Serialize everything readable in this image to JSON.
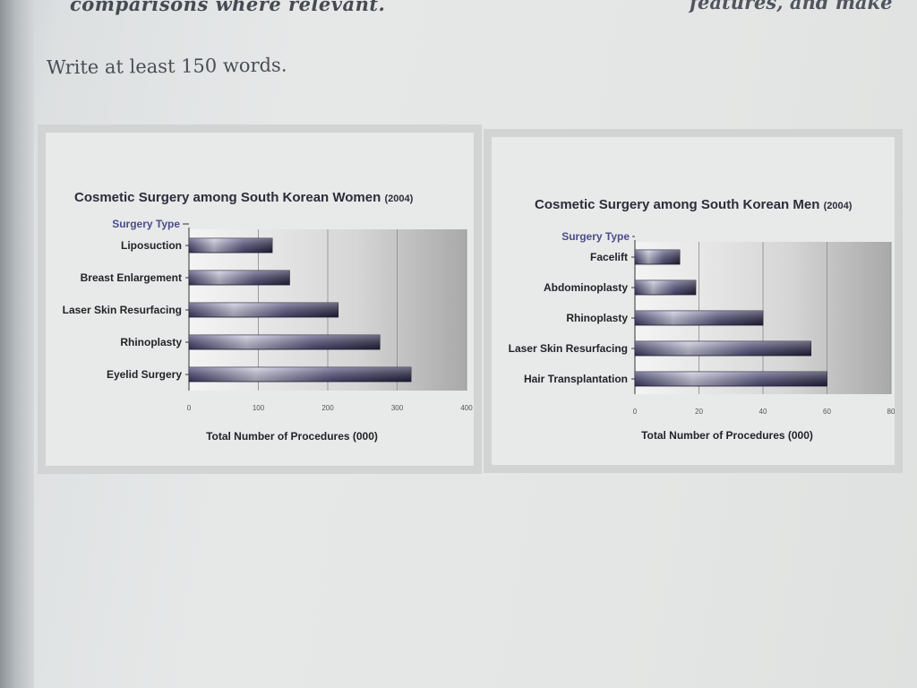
{
  "page": {
    "top_text_left": "comparisons where relevant.",
    "top_text_right": "features, and make",
    "instruction": "Write at least 150 words."
  },
  "chart_data": [
    {
      "type": "bar",
      "orientation": "horizontal",
      "title": "Cosmetic Surgery among South Korean Women",
      "title_suffix": "(2004)",
      "category_axis_title": "Surgery Type",
      "xlabel": "Total Number of Procedures (000)",
      "categories": [
        "Liposuction",
        "Breast Enlargement",
        "Laser Skin Resurfacing",
        "Rhinoplasty",
        "Eyelid Surgery"
      ],
      "values": [
        120,
        145,
        215,
        275,
        320
      ],
      "xlim": [
        0,
        400
      ],
      "xticks": [
        0,
        100,
        200,
        300,
        400
      ],
      "grid": true,
      "bar_color": "#3f3c6a",
      "bar_highlight": "#c9c8de"
    },
    {
      "type": "bar",
      "orientation": "horizontal",
      "title": "Cosmetic Surgery among South Korean Men",
      "title_suffix": "(2004)",
      "category_axis_title": "Surgery Type",
      "xlabel": "Total Number of Procedures (000)",
      "categories": [
        "Facelift",
        "Abdominoplasty",
        "Rhinoplasty",
        "Laser Skin Resurfacing",
        "Hair Transplantation"
      ],
      "values": [
        14,
        19,
        40,
        55,
        60
      ],
      "xlim": [
        0,
        80
      ],
      "xticks": [
        0,
        20,
        40,
        60,
        80
      ],
      "grid": true,
      "bar_color": "#3f3c6a",
      "bar_highlight": "#c9c8de"
    }
  ]
}
